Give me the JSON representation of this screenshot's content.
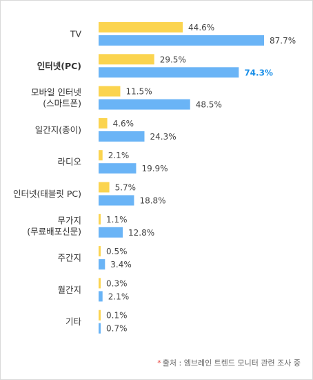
{
  "chart_data": {
    "type": "bar",
    "orientation": "horizontal",
    "categories": [
      [
        "TV"
      ],
      [
        "인터넷(PC)"
      ],
      [
        "모바일 인터넷",
        "(스마트폰)"
      ],
      [
        "일간지(종이)"
      ],
      [
        "라디오"
      ],
      [
        "인터넷(태블릿 PC)"
      ],
      [
        "무가지",
        "(무료배포신문)"
      ],
      [
        "주간지"
      ],
      [
        "월간지"
      ],
      [
        "기타"
      ]
    ],
    "highlight_index": 1,
    "highlight_series_index": 1,
    "series": [
      {
        "color": "#fbd44f",
        "values": [
          44.6,
          29.5,
          11.5,
          4.6,
          2.1,
          5.7,
          1.1,
          0.5,
          0.3,
          0.1
        ],
        "labels": [
          "44.6%",
          "29.5%",
          "11.5%",
          "4.6%",
          "2.1%",
          "5.7%",
          "1.1%",
          "0.5%",
          "0.3%",
          "0.1%"
        ]
      },
      {
        "color": "#6ab4f6",
        "values": [
          87.7,
          74.3,
          48.5,
          24.3,
          19.9,
          18.8,
          12.8,
          3.4,
          2.1,
          0.7
        ],
        "labels": [
          "87.7%",
          "74.3%",
          "48.5%",
          "24.3%",
          "19.9%",
          "18.8%",
          "12.8%",
          "3.4%",
          "2.1%",
          "0.7%"
        ]
      }
    ],
    "xlim": [
      0,
      100
    ],
    "grid": false,
    "legend": "none",
    "highlight_color": "#1a8fe8"
  },
  "source": {
    "marker": "*",
    "text": "출처 : 엠브레인 트렌드 모니터 관련 조사 중"
  }
}
